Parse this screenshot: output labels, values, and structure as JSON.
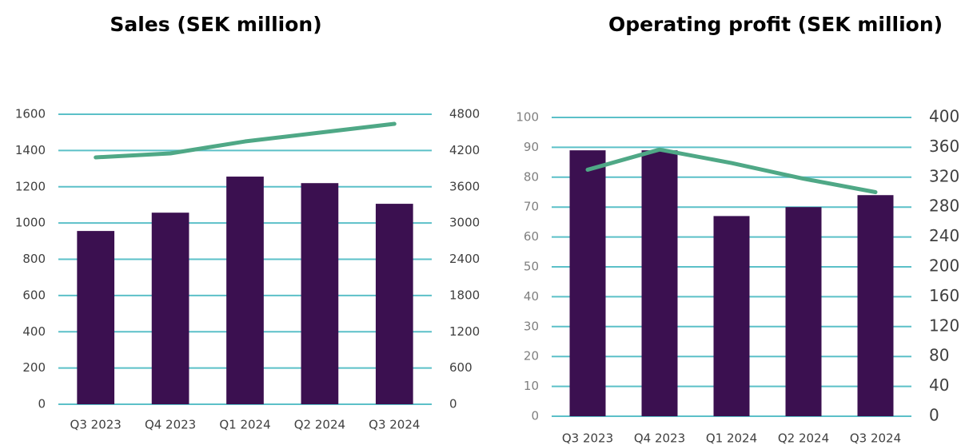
{
  "chart_data": [
    {
      "type": "combo",
      "title": "Sales (SEK million)",
      "categories": [
        "Q3 2023",
        "Q4 2023",
        "Q1 2024",
        "Q2 2024",
        "Q3 2024"
      ],
      "series": [
        {
          "type": "bar",
          "color": "#3b1050",
          "values": [
            956,
            1057,
            1256,
            1220,
            1106
          ]
        },
        {
          "type": "line",
          "axis": "y2",
          "color": "#4fa886",
          "values": [
            4086,
            4152,
            4350,
            4496,
            4641
          ]
        }
      ],
      "ylim": [
        0,
        1600
      ],
      "yticks": [
        0,
        200,
        400,
        600,
        800,
        1000,
        1200,
        1400,
        1600
      ],
      "y2lim": [
        0,
        4800
      ],
      "y2ticks": [
        0,
        600,
        1200,
        1800,
        2400,
        3000,
        3600,
        4200,
        4800
      ],
      "grid": true,
      "grid_color": "#5bc0c8"
    },
    {
      "type": "combo",
      "title": "Operating profit (SEK million)",
      "categories": [
        "Q3 2023",
        "Q4 2023",
        "Q1 2024",
        "Q2 2024",
        "Q3 2024"
      ],
      "series": [
        {
          "type": "bar",
          "color": "#3b1050",
          "values": [
            89,
            89,
            67,
            70,
            74
          ]
        },
        {
          "type": "line",
          "axis": "y2",
          "color": "#4fa886",
          "values": [
            330,
            357,
            339,
            318,
            300
          ]
        }
      ],
      "ylim": [
        0,
        100
      ],
      "yticks": [
        0,
        10,
        20,
        30,
        40,
        50,
        60,
        70,
        80,
        90,
        100
      ],
      "y2lim": [
        0,
        400
      ],
      "y2ticks": [
        0,
        40,
        80,
        120,
        160,
        200,
        240,
        280,
        320,
        360,
        400
      ],
      "grid": true,
      "grid_color": "#5bc0c8"
    }
  ]
}
